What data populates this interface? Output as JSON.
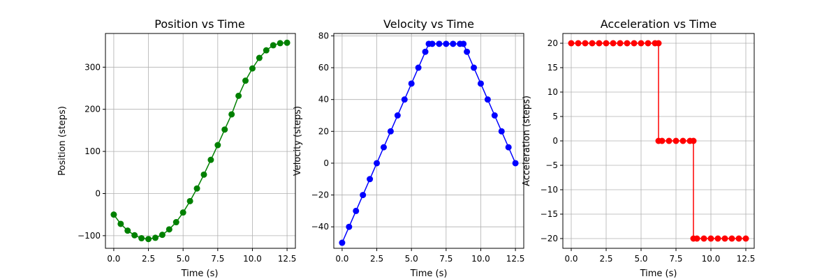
{
  "chart_data": [
    {
      "type": "line",
      "title": "Position vs Time",
      "xlabel": "Time (s)",
      "ylabel": "Position (steps)",
      "xlim": [
        -0.6,
        13.1
      ],
      "ylim": [
        -130,
        380
      ],
      "xticks": [
        0,
        2.5,
        5,
        7.5,
        10,
        12.5
      ],
      "xtick_labels": [
        "0.0",
        "2.5",
        "5.0",
        "7.5",
        "10.0",
        "12.5"
      ],
      "yticks": [
        -100,
        0,
        100,
        200,
        300
      ],
      "ytick_labels": [
        "−100",
        "0",
        "100",
        "200",
        "300"
      ],
      "grid": true,
      "color": "#008000",
      "marker": "circle",
      "series": [
        {
          "x": [
            0.0,
            0.5,
            1.0,
            1.5,
            2.0,
            2.5,
            3.0,
            3.5,
            4.0,
            4.5,
            5.0,
            5.5,
            6.0,
            6.5,
            7.0,
            7.5,
            8.0,
            8.5,
            9.0,
            9.5,
            10.0,
            10.5,
            11.0,
            11.5,
            12.0,
            12.5
          ],
          "y": [
            -50,
            -72,
            -88,
            -99,
            -106,
            -108,
            -105,
            -98,
            -85,
            -68,
            -45,
            -18,
            12,
            45,
            80,
            115,
            152,
            188,
            232,
            268,
            297,
            322,
            340,
            352,
            357,
            358
          ]
        }
      ]
    },
    {
      "type": "line",
      "title": "Velocity vs Time",
      "xlabel": "Time (s)",
      "ylabel": "Velocity (steps)",
      "xlim": [
        -0.6,
        13.1
      ],
      "ylim": [
        -53.5,
        81.5
      ],
      "xticks": [
        0,
        2.5,
        5,
        7.5,
        10,
        12.5
      ],
      "xtick_labels": [
        "0.0",
        "2.5",
        "5.0",
        "7.5",
        "10.0",
        "12.5"
      ],
      "yticks": [
        -40,
        -20,
        0,
        20,
        40,
        60,
        80
      ],
      "ytick_labels": [
        "−40",
        "−20",
        "0",
        "20",
        "40",
        "60",
        "80"
      ],
      "grid": true,
      "color": "#0000ff",
      "marker": "circle",
      "series": [
        {
          "x": [
            0.0,
            0.5,
            1.0,
            1.5,
            2.0,
            2.5,
            3.0,
            3.5,
            4.0,
            4.5,
            5.0,
            5.5,
            6.0,
            6.25,
            6.5,
            7.0,
            7.5,
            8.0,
            8.5,
            8.75,
            9.0,
            9.5,
            10.0,
            10.5,
            11.0,
            11.5,
            12.0,
            12.5
          ],
          "y": [
            -50,
            -40,
            -30,
            -20,
            -10,
            0,
            10,
            20,
            30,
            40,
            50,
            60,
            70,
            75,
            75,
            75,
            75,
            75,
            75,
            75,
            70,
            60,
            50,
            40,
            30,
            20,
            10,
            0
          ]
        }
      ]
    },
    {
      "type": "line",
      "title": "Acceleration vs Time",
      "xlabel": "Time (s)",
      "ylabel": "Acceleration (steps)",
      "xlim": [
        -0.6,
        13.1
      ],
      "ylim": [
        -22,
        22
      ],
      "xticks": [
        0,
        2.5,
        5,
        7.5,
        10,
        12.5
      ],
      "xtick_labels": [
        "0.0",
        "2.5",
        "5.0",
        "7.5",
        "10.0",
        "12.5"
      ],
      "yticks": [
        -20,
        -15,
        -10,
        -5,
        0,
        5,
        10,
        15,
        20
      ],
      "ytick_labels": [
        "−20",
        "−15",
        "−10",
        "−5",
        "0",
        "5",
        "10",
        "15",
        "20"
      ],
      "grid": true,
      "color": "#ff0000",
      "marker": "circle",
      "series": [
        {
          "x": [
            0.0,
            0.5,
            1.0,
            1.5,
            2.0,
            2.5,
            3.0,
            3.5,
            4.0,
            4.5,
            5.0,
            5.5,
            6.0,
            6.25,
            6.25,
            6.5,
            7.0,
            7.5,
            8.0,
            8.5,
            8.75,
            8.75,
            9.0,
            9.5,
            10.0,
            10.5,
            11.0,
            11.5,
            12.0,
            12.5
          ],
          "y": [
            20,
            20,
            20,
            20,
            20,
            20,
            20,
            20,
            20,
            20,
            20,
            20,
            20,
            20,
            0,
            0,
            0,
            0,
            0,
            0,
            0,
            -20,
            -20,
            -20,
            -20,
            -20,
            -20,
            -20,
            -20,
            -20
          ]
        }
      ]
    }
  ]
}
